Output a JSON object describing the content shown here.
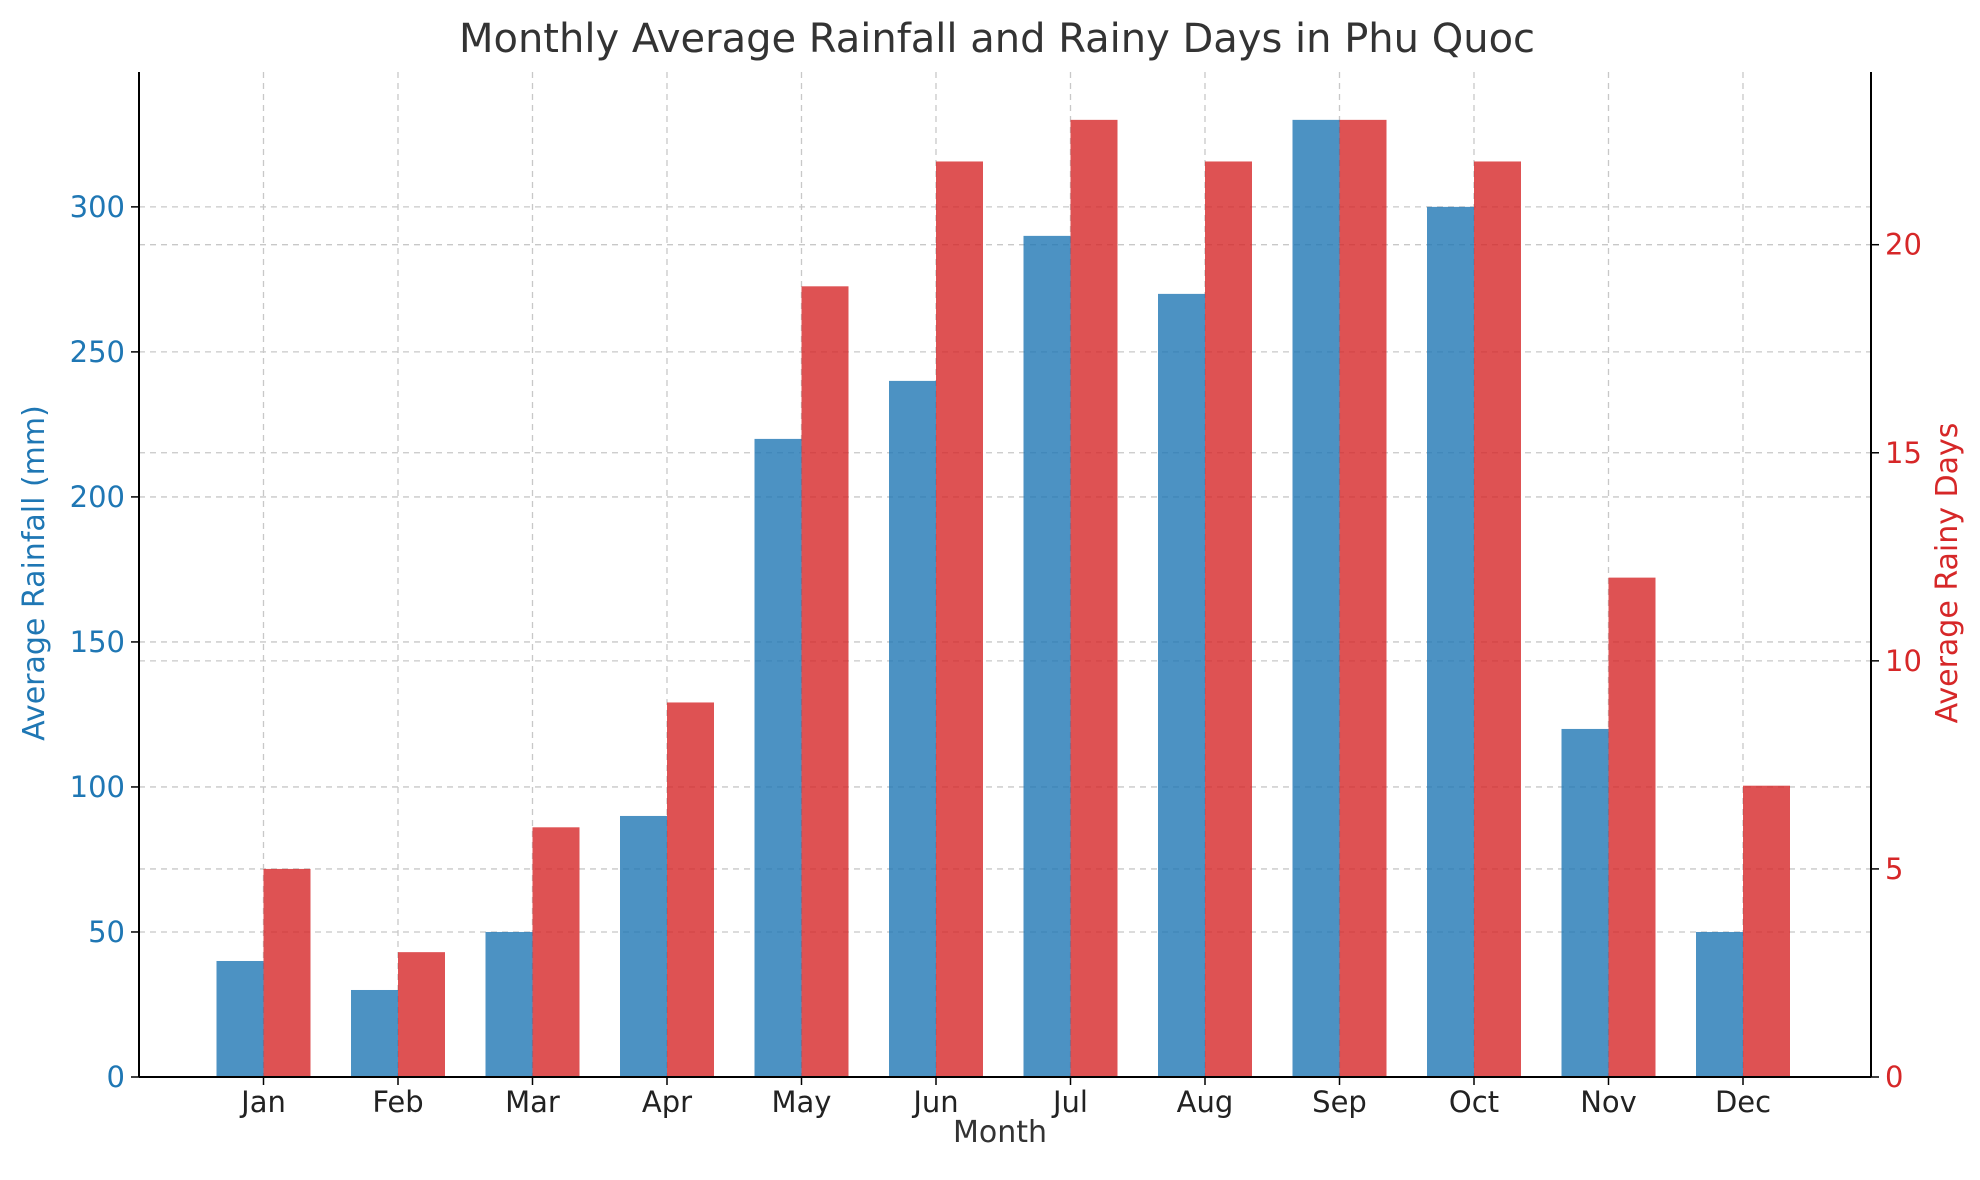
{
  "chart_data": {
    "type": "bar",
    "title": "Monthly Average Rainfall and Rainy Days in Phu Quoc",
    "xlabel": "Month",
    "categories": [
      "Jan",
      "Feb",
      "Mar",
      "Apr",
      "May",
      "Jun",
      "Jul",
      "Aug",
      "Sep",
      "Oct",
      "Nov",
      "Dec"
    ],
    "series": [
      {
        "name": "Average Rainfall (mm)",
        "axis": "left",
        "color": "#1f77b4",
        "values": [
          40,
          30,
          50,
          90,
          220,
          240,
          290,
          270,
          330,
          300,
          120,
          50
        ]
      },
      {
        "name": "Average Rainy Days",
        "axis": "right",
        "color": "#d62728",
        "values": [
          5,
          3,
          6,
          9,
          19,
          22,
          23,
          22,
          23,
          22,
          12,
          7
        ]
      }
    ],
    "y_left": {
      "label": "Average Rainfall (mm)",
      "ylim": [
        0,
        346.5
      ],
      "ticks": [
        0,
        50,
        100,
        150,
        200,
        250,
        300
      ],
      "color": "#1f77b4"
    },
    "y_right": {
      "label": "Average Rainy Days",
      "ylim": [
        0,
        24.15
      ],
      "ticks": [
        0,
        5,
        10,
        15,
        20
      ],
      "color": "#d62728"
    },
    "grid": true
  }
}
